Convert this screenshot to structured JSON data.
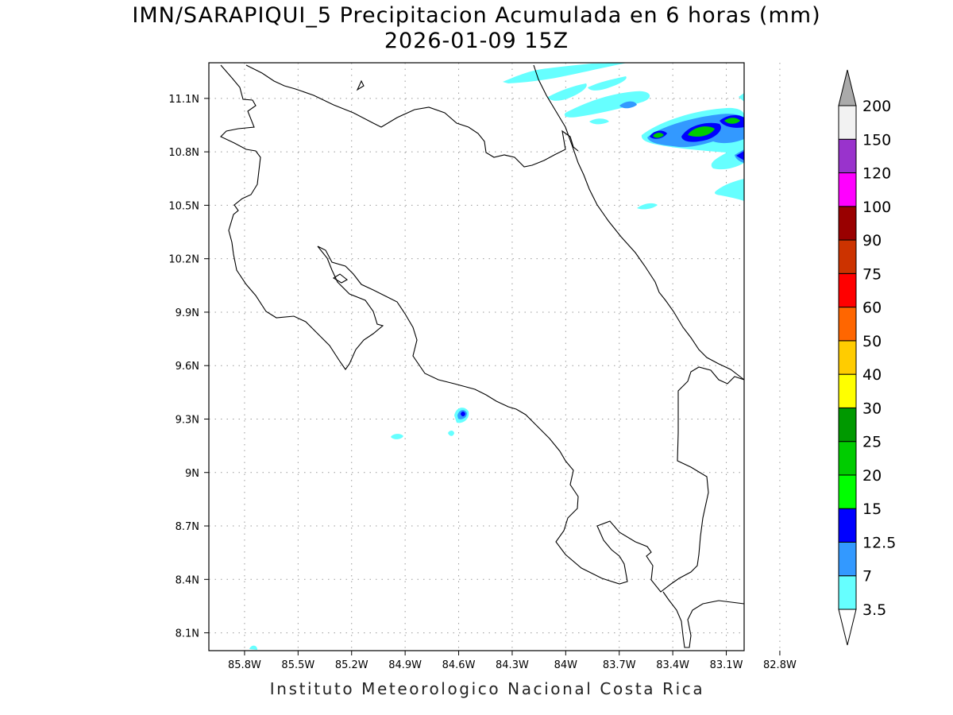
{
  "map": {
    "title": "IMN/SARAPIQUI_5 Precipitacion Acumulada en 6 horas (mm)",
    "subtitle": "2026-01-09 15Z",
    "footer": "Instituto Meteorologico Nacional Costa Rica",
    "lon_range": [
      -86.0,
      -83.0
    ],
    "lat_range": [
      8.0,
      11.3
    ],
    "lon_ticks": [
      "85.8W",
      "85.5W",
      "85.2W",
      "84.9W",
      "84.6W",
      "84.3W",
      "84W",
      "83.7W",
      "83.4W",
      "83.1W",
      "82.8W"
    ],
    "lat_ticks": [
      "8.1N",
      "8.4N",
      "8.7N",
      "9N",
      "9.3N",
      "9.6N",
      "9.9N",
      "10.2N",
      "10.5N",
      "10.8N",
      "11.1N"
    ]
  },
  "colorbar": {
    "labels": [
      "3.5",
      "7",
      "12.5",
      "15",
      "20",
      "25",
      "30",
      "40",
      "50",
      "60",
      "75",
      "90",
      "100",
      "120",
      "150",
      "200"
    ],
    "colors": [
      "#66ffff",
      "#3399ff",
      "#0000ff",
      "#00ff00",
      "#00cc00",
      "#009900",
      "#ffff00",
      "#ffcc00",
      "#ff6600",
      "#ff0000",
      "#cc3300",
      "#990000",
      "#ff00ff",
      "#9933cc",
      "#f2f2f2",
      "#aaaaaa"
    ]
  }
}
